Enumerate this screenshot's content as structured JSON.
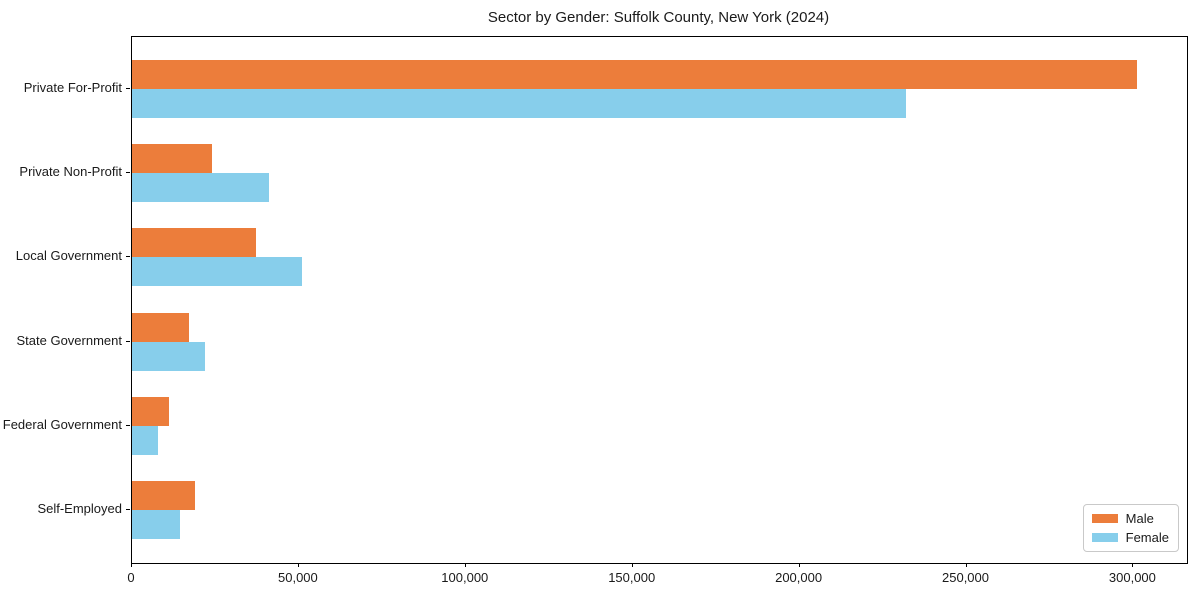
{
  "chart_data": {
    "type": "bar",
    "orientation": "horizontal",
    "title": "Sector by Gender: Suffolk County, New York (2024)",
    "categories": [
      "Private For-Profit",
      "Private Non-Profit",
      "Local Government",
      "State Government",
      "Federal Government",
      "Self-Employed"
    ],
    "series": [
      {
        "name": "Male",
        "color": "#ec7d3b",
        "values": [
          301000,
          24000,
          37000,
          17000,
          11000,
          19000
        ]
      },
      {
        "name": "Female",
        "color": "#87ceeb",
        "values": [
          232000,
          41000,
          51000,
          22000,
          7800,
          14400
        ]
      }
    ],
    "xlabel": "",
    "ylabel": "",
    "xlim": [
      0,
      316050
    ],
    "xtick_values": [
      0,
      50000,
      100000,
      150000,
      200000,
      250000,
      300000
    ],
    "xtick_labels": [
      "0",
      "50,000",
      "100,000",
      "150,000",
      "200,000",
      "250,000",
      "300,000"
    ],
    "grid": false,
    "legend_position": "lower right",
    "background_color": "#ffffff",
    "spine_color": "#000000"
  }
}
